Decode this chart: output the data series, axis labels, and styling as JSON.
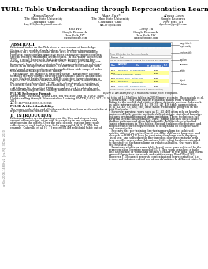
{
  "title": "TURL: Table Understanding through Representation Learning",
  "authors_row1": [
    {
      "name": "Xiang Deng*",
      "affil1": "The Ohio State University",
      "affil2": "Columbus, Ohio",
      "email": "deng.195@buckeyemail.osu.edu"
    },
    {
      "name": "Huan Sun*",
      "affil1": "The Ohio State University",
      "affil2": "Columbus, Ohio",
      "email": "sun.397@osu.edu"
    },
    {
      "name": "Alyssa Lees",
      "affil1": "Google Research",
      "affil2": "New York, NY",
      "email": "alyssalees@google.com"
    }
  ],
  "authors_row2": [
    {
      "name": "You Wu",
      "affil1": "Google Research",
      "affil2": "New York, NY",
      "email": "youwu@google.com"
    },
    {
      "name": "Cong Yu",
      "affil1": "Google Research",
      "affil2": "New York, NY",
      "email": "congyu@google.com"
    }
  ],
  "arxiv_text": "arXiv:2006.14806v2  [cs.IR]  3 Dec 2020",
  "abstract_title": "ABSTRACT",
  "abstract_lines": [
    "Relational tables on the Web store a vast amount of knowledge.",
    "Owing to the wealth of such tables, there has been tremendous",
    "progress on a variety of tasks in the area of table understanding.",
    "However, existing work generally relies on heavily-engineered task-",
    "specific features and model architectures. In this paper, we present",
    "TURL, a novel framework that introduces the pre-training fine-",
    "tuning paradigm to relational Web tables. During pre-training, our",
    "framework learns deep contextualized representations on relational",
    "tables in an unsupervised manner. Its universal model design with",
    "pre-trained representations can be applied to a wide range of tasks",
    "with minimal task specific fine tuning.",
    "   Specifically, we propose a structure-aware Transformer encoder",
    "to model the row-column structure of relational tables, and present",
    "a new Masked Entity Recovery (MER) objective for pre-training to",
    "capture the semantics and knowledge in large scale unlabeled data.",
    "We systematically evaluate TURL with a benchmark consisting of",
    "6 different tasks for table understanding (e.g., relation extraction,",
    "cell filling). We show that TURL generalizes well to all tasks and",
    "substantially outperforms existing methods in almost all instances."
  ],
  "pvldb_ref_header": "PVLDB Reference Format:",
  "pvldb_ref_lines": [
    "Xiang Deng, Huan Sun, Alyssa Lees, You Wu, and Cong Yu. TURL: Table",
    "Understanding through Representation Learning. PVLDB, 14(3): 307 - 319,",
    "2021.",
    "doi:10.14778/3430915.3430921"
  ],
  "pvldb_avail_header": "PVLDB Artifact Availability:",
  "pvldb_avail_lines": [
    "The source code, data, and all other artifacts have been made available at",
    "https://github.com/sunlab-osu/TURL."
  ],
  "intro_title": "1   INTRODUCTION",
  "intro_lines": [
    "Relational tables are in abundance on the Web and store a large",
    "amount of knowledge, often with key entities in one column and",
    "attributes in the others. Over the past decade, various large-scale",
    "collections of such tables have been aggregated [4, 5, 7, 55]. For",
    "example, Cafarella et al. [6, 7] reported 14M relational table out of"
  ],
  "figure_title": "National Film Award for Best Direction",
  "figure_search": "Filmee  (en)",
  "figure_subcaption": "From Wikipedia, the free encyclopedia",
  "figure_table_caption": "List of award recipients, showing the year, film and language",
  "figure_headers": [
    "Year",
    "Director\n▲",
    "Film",
    "▲",
    "Language ▲",
    "Ref"
  ],
  "figure_header_widths": [
    9,
    16,
    22,
    3,
    18,
    7
  ],
  "figure_rows": [
    [
      "1954",
      "Bimal Roy",
      "Do Bigha Zamin",
      "",
      "Hindi",
      ""
    ],
    [
      "1955",
      "Hrishikesh Mukherjee",
      "Musafir",
      "",
      "Hindi",
      ""
    ],
    [
      "1956",
      "Mehboob Khan",
      "Mother India",
      "",
      "Hindi",
      ""
    ],
    [
      "1957",
      "Bimal Roy",
      "Madhumati",
      "",
      "Hindi",
      ""
    ],
    [
      "1958",
      "Guru Dutt",
      "Kaagaz Ke Phool",
      "",
      "Hindi",
      ""
    ]
  ],
  "figure_footer": "subject column (cyan links are linked to specific entities)",
  "figure_caption": "Figure 1: An example of a relational table from Wikipedia.",
  "figure_labels": [
    "page title &\ntopic entity",
    "section title",
    "caption",
    "headers",
    "entity",
    "object\nrelation"
  ],
  "intro2_lines": [
    "a total of 14.1 billion tables in 2008 (more recently, Bhagavatula et al.",
    "[5] extracted 1.6M high quality relational tables from Wikipedia.",
    "Owing to the wealth and utility of these datasets, various tasks such",
    "as table interpretation [3, 14, 29, 39, 47, 49] table augmentation",
    "[3, 4, 12, 40, 43, 46], etc., have made tremendous progress in the",
    "past few years.",
    "   However, previous work such as [3, 43, 46] often rely on heavily-",
    "engineered task-specific methods such as simple statistical language",
    "features or straightforward string matching. These techniques suf-",
    "fer from several disadvantages. First, simply features only capture",
    "shallow patterns and often fail to handle the flexible schema and",
    "varied expressions in Web tables. Second, task specific features and",
    "model architectures require effort to design and do not generalize",
    "well across tasks.",
    "   Recently, the pre-training fine-tuning paradigm has achieved",
    "notable success on unstructured text data. Advanced language mod-",
    "els such as BERT [15] can be pre-trained on large scale unsuper-",
    "vised text, and subsequently fine-tuned on downstream tasks with",
    "task specific supervision. In contrast little effort has been extended",
    "to the study of such paradigms on relational tables. Our work fills",
    "this research gap.",
    "   Promising results on some table based tasks were achieved by the",
    "representation learning model of [13]. This work serializes a table",
    "into a sequence of words and entities (similar to text data) and learns",
    "embedding vectors for words and entities using Word2Vec [26].",
    "However, [13] cannot generate contextualized representations, i.e.,",
    "it does not consider varied use of words/entities in different contexts"
  ],
  "bg_color": "#ffffff",
  "text_color": "#000000",
  "gray_color": "#777777",
  "light_gray": "#bbbbbb",
  "table_blue": "#3a6fad",
  "table_light_blue": "#c5d9f1",
  "table_yellow": "#ffff99",
  "table_orange": "#ffc000",
  "arxiv_bg": "#b8cce4"
}
